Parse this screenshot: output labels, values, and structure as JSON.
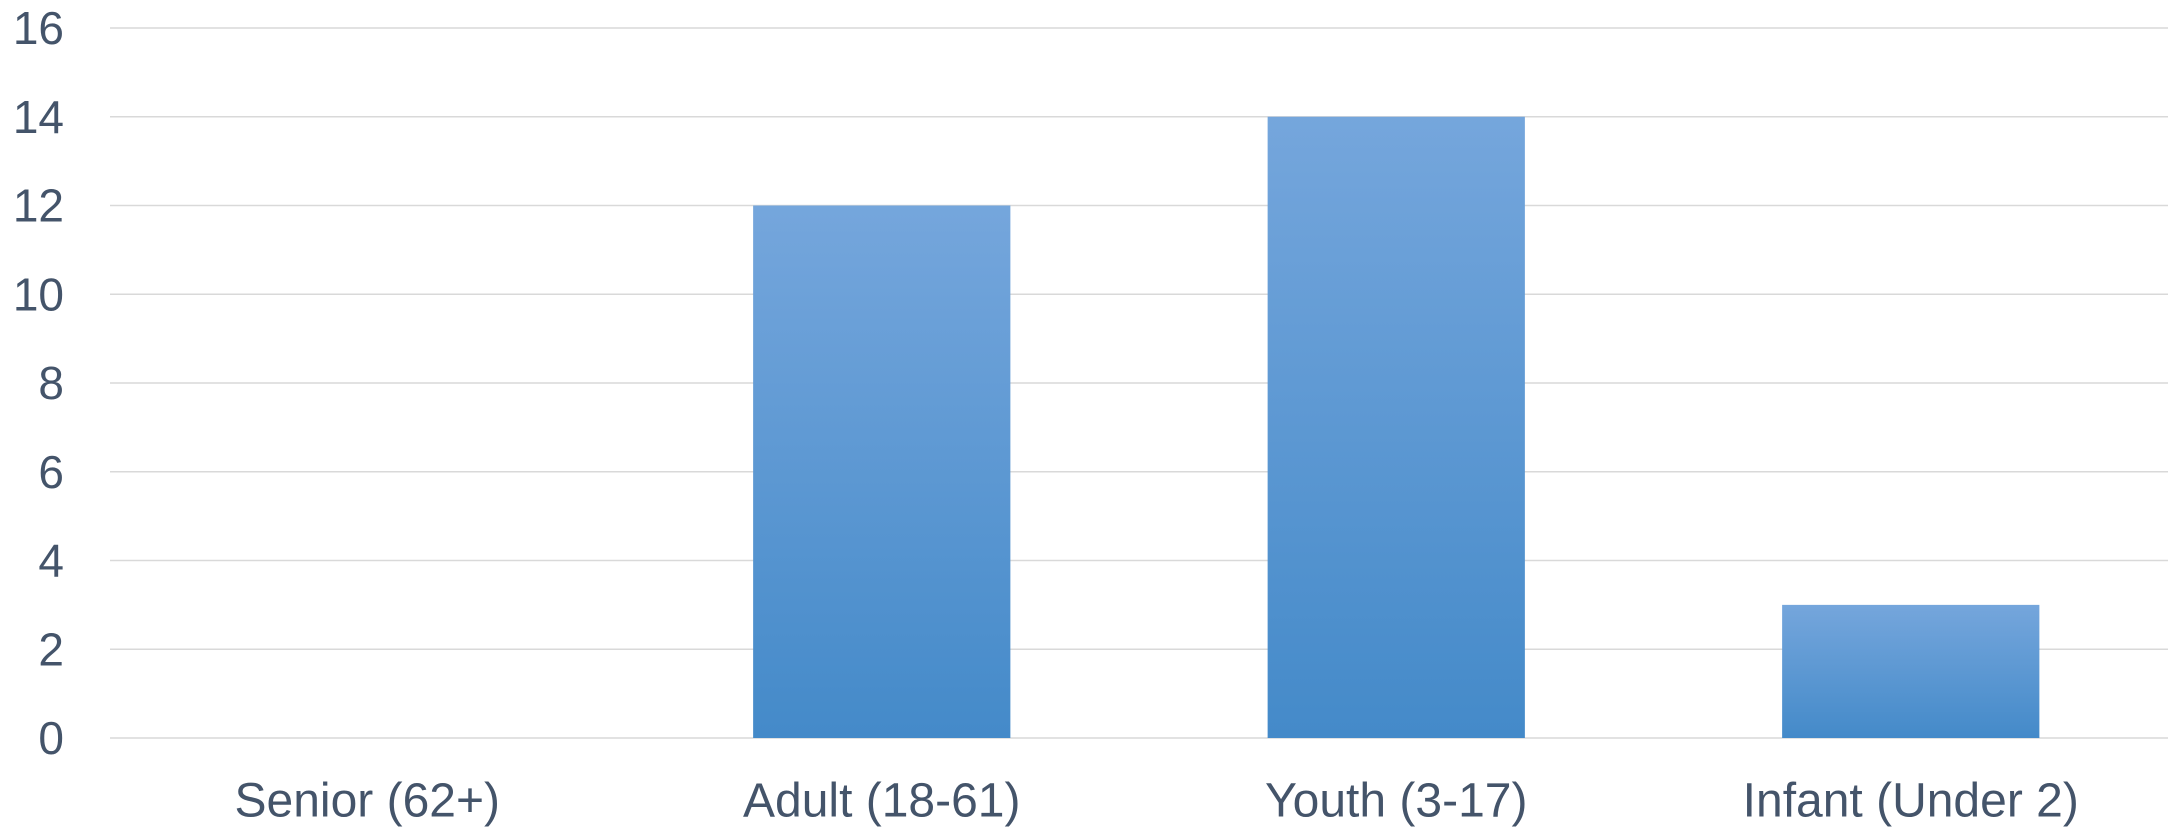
{
  "chart_data": {
    "type": "bar",
    "title": "",
    "xlabel": "",
    "ylabel": "",
    "categories": [
      "Senior (62+)",
      "Adult (18-61)",
      "Youth (3-17)",
      "Infant (Under 2)"
    ],
    "series": [
      {
        "values": [
          0,
          12,
          14,
          3
        ]
      }
    ],
    "ylim": [
      0,
      16
    ],
    "yticks": [
      "0",
      "2",
      "4",
      "6",
      "8",
      "10",
      "12",
      "14",
      "16"
    ],
    "grid": true,
    "legend": "none",
    "colors": {
      "bar_top": "#75A6DC",
      "bar_bottom": "#448AC9",
      "text": "#44546A",
      "grid": "#D9D9D9"
    }
  }
}
